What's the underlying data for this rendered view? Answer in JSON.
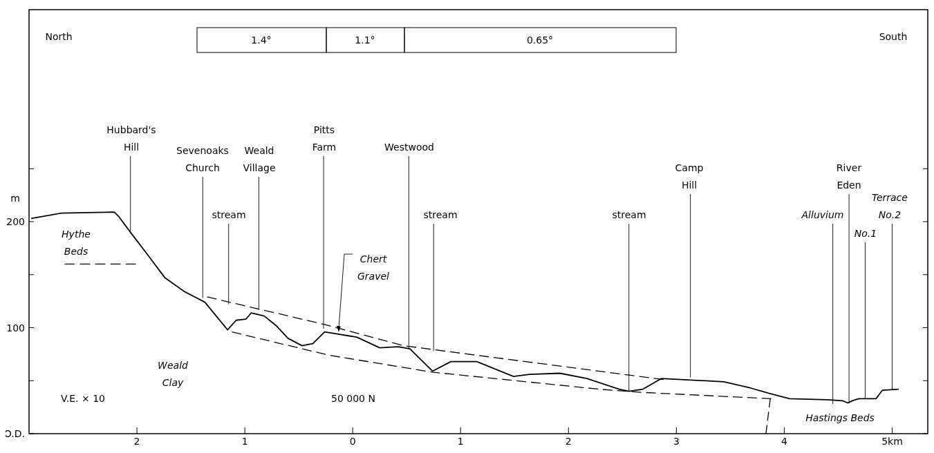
{
  "chart_data": {
    "type": "line",
    "ylabel": "m",
    "xlim": [
      -3.0,
      5.33
    ],
    "ylim": [
      0,
      400
    ],
    "xticks": [
      {
        "value": -2,
        "label": "2"
      },
      {
        "value": -1,
        "label": "1"
      },
      0,
      1,
      2,
      3,
      4,
      {
        "value": 5,
        "label": "5km"
      }
    ],
    "yticks": [
      {
        "value": 0,
        "label": "O.D."
      },
      {
        "value": 50,
        "label": null
      },
      100,
      {
        "value": 150,
        "label": null
      },
      200,
      {
        "value": 250,
        "label": null
      }
    ],
    "series": [
      {
        "color": "#000000",
        "line_style": "solid",
        "x": [
          -2.98,
          -2.7,
          -2.21,
          -2.17,
          -2.06,
          -1.91,
          -1.74,
          -1.56,
          -1.37,
          -1.16,
          -1.08,
          -0.99,
          -0.94,
          -0.82,
          -0.71,
          -0.6,
          -0.47,
          -0.37,
          -0.26,
          0.04,
          0.25,
          0.42,
          0.53,
          0.74,
          0.91,
          1.15,
          1.49,
          1.64,
          1.92,
          2.17,
          2.47,
          2.56,
          2.69,
          2.86,
          3.44,
          3.69,
          3.86,
          4.05,
          4.4,
          4.54,
          4.59,
          4.63,
          4.69,
          4.85,
          4.91,
          5.06
        ],
        "values": [
          203,
          208,
          209,
          205,
          190,
          170,
          147,
          134,
          124,
          98,
          107,
          108,
          114,
          111,
          102,
          90,
          83,
          85,
          96,
          91,
          81,
          82,
          80,
          59,
          68,
          68,
          54,
          56,
          57,
          52,
          42,
          40,
          42,
          52,
          49,
          43,
          38,
          33,
          32,
          31,
          29,
          31,
          33,
          33,
          41,
          42
        ]
      },
      {
        "color": "#000000",
        "line_style": "dashed",
        "x": [
          -1.35,
          -0.26,
          0.47,
          2.88
        ],
        "values": [
          129,
          103,
          83,
          51
        ]
      },
      {
        "color": "#000000",
        "line_style": "dashed",
        "x": [
          -1.12,
          -0.22,
          0.74,
          2.28,
          2.67,
          3.88
        ],
        "values": [
          96,
          74,
          58,
          42,
          39,
          33
        ]
      },
      {
        "color": "#000000",
        "line_style": "dashed",
        "x": [
          -2.67,
          -2.01
        ],
        "values": [
          160,
          160
        ]
      },
      {
        "color": "#000000",
        "line_style": "dashed",
        "x": [
          3.87,
          3.83
        ],
        "values": [
          33,
          0
        ]
      }
    ],
    "annotations": [
      "North",
      "South",
      "V.E. × 10",
      "50 000 N",
      "Hythe\nBeds",
      "Weald\nClay",
      "Hastings Beds",
      {
        "text": "Hubbard's\nHill",
        "x": -2.06,
        "y": 191
      },
      {
        "text": "Sevenoaks\nChurch",
        "x": -1.39,
        "y": 128
      },
      {
        "text": "Weald\nVillage",
        "x": -0.87,
        "y": 117
      },
      {
        "text": "stream",
        "x": -1.15,
        "y": 122
      },
      {
        "text": "Pitts\nFarm",
        "x": -0.27,
        "y": 99
      },
      {
        "text": "Chert\nGravel",
        "x": -0.13,
        "y": 96
      },
      {
        "text": "Westwood",
        "x": 0.52,
        "y": 80
      },
      {
        "text": "stream",
        "x": 0.75,
        "y": 78
      },
      {
        "text": "stream",
        "x": 2.56,
        "y": 40
      },
      {
        "text": "Camp\nHill",
        "x": 3.13,
        "y": 53
      },
      {
        "text": "Alluvium",
        "x": 4.45,
        "y": 28
      },
      {
        "text": "River\nEden",
        "x": 4.6,
        "y": 29
      },
      {
        "text": "No.1",
        "x": 4.75,
        "y": 33
      },
      {
        "text": "Terrace\nNo.2",
        "x": 5.0,
        "y": 41
      },
      "1.4°",
      "1.1°",
      "0.65°"
    ]
  }
}
